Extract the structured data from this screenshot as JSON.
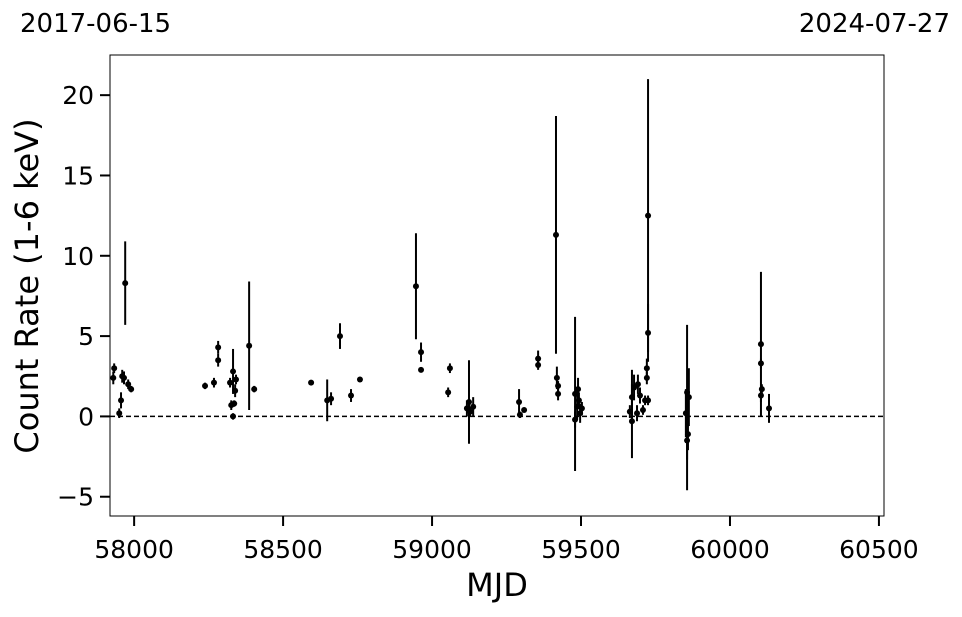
{
  "chart_data": {
    "type": "errorbar",
    "xlabel": "MJD",
    "ylabel": "Count Rate (1-6 keV)",
    "annotations": [
      "2017-06-15",
      "2024-07-27"
    ],
    "xlim": [
      57919,
      60517
    ],
    "ylim": [
      -6.2,
      22.5
    ],
    "xticks": [
      58000,
      58500,
      59000,
      59500,
      60000,
      60500
    ],
    "yticks": [
      {
        "value": -5,
        "label": "−5"
      },
      0,
      5,
      10,
      15,
      20
    ],
    "hline": 0,
    "color": "#000000",
    "series": [
      {
        "x": [
          57930,
          57933,
          57950,
          57956,
          57960,
          57970,
          57966,
          57980,
          57990,
          58238,
          58268,
          58282,
          58282,
          58322,
          58326,
          58332,
          58332,
          58339,
          58342,
          58336,
          58386,
          58403,
          58594,
          58648,
          58661,
          58691,
          58728,
          58758,
          58946,
          58963,
          58963,
          59054,
          59060,
          59117,
          59124,
          59128,
          59138,
          59292,
          59295,
          59309,
          59356,
          59356,
          59416,
          59419,
          59423,
          59423,
          59480,
          59480,
          59487,
          59490,
          59497,
          59503,
          59493,
          59664,
          59671,
          59671,
          59678,
          59688,
          59691,
          59698,
          59708,
          59715,
          59721,
          59721,
          59725,
          59725,
          59725,
          59852,
          59856,
          59856,
          59859,
          59862,
          60104,
          60104,
          60107,
          60104,
          60131
        ],
        "values": [
          2.4,
          3.0,
          0.2,
          1.0,
          2.5,
          8.3,
          2.4,
          2.0,
          1.7,
          1.9,
          2.1,
          4.3,
          3.5,
          2.1,
          0.7,
          2.8,
          0.0,
          1.6,
          2.3,
          0.8,
          4.4,
          1.7,
          2.1,
          1.0,
          1.1,
          5.0,
          1.3,
          2.3,
          8.1,
          4.0,
          2.9,
          1.5,
          3.0,
          0.5,
          0.9,
          0.3,
          0.6,
          0.9,
          0.1,
          0.4,
          3.6,
          3.2,
          11.3,
          2.4,
          1.4,
          1.9,
          1.4,
          -0.2,
          0.6,
          1.7,
          0.2,
          0.5,
          1.0,
          0.3,
          -0.3,
          1.2,
          1.8,
          0.2,
          2.0,
          1.3,
          0.4,
          1.0,
          3.0,
          2.4,
          12.5,
          5.2,
          1.0,
          0.2,
          -1.5,
          1.5,
          -1.1,
          1.2,
          4.5,
          3.3,
          1.7,
          1.3,
          0.5
        ],
        "errors": [
          0.4,
          0.3,
          0.3,
          0.5,
          0.4,
          2.6,
          0.4,
          0.3,
          0.2,
          0.2,
          0.3,
          0.4,
          0.4,
          0.3,
          0.3,
          1.4,
          0.2,
          0.4,
          0.3,
          0.2,
          4.0,
          0.2,
          0.1,
          1.3,
          0.4,
          0.8,
          0.4,
          0.15,
          3.3,
          0.6,
          0.15,
          0.3,
          0.3,
          0.5,
          2.6,
          0.3,
          0.6,
          0.8,
          0.2,
          0.15,
          0.5,
          0.3,
          7.4,
          0.7,
          0.4,
          0.3,
          4.8,
          0.5,
          0.8,
          0.7,
          0.6,
          0.4,
          0.5,
          0.4,
          2.3,
          1.7,
          0.8,
          0.5,
          0.6,
          0.5,
          0.3,
          0.3,
          0.6,
          0.4,
          8.5,
          1.8,
          0.3,
          1.5,
          3.1,
          4.2,
          1.0,
          1.8,
          4.5,
          0.3,
          0.3,
          0.4,
          0.9
        ]
      }
    ]
  }
}
